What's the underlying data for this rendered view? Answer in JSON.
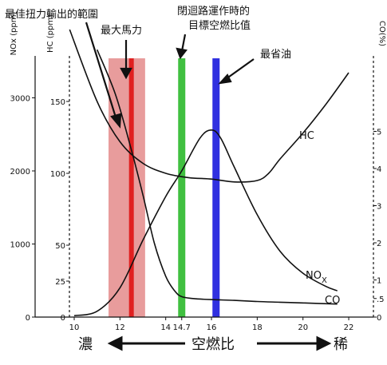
{
  "chart_data": {
    "type": "line",
    "title": "",
    "xlabel": "空燃比",
    "xlabel_left": "濃",
    "xlabel_right": "稀",
    "x_ticks": [
      "10",
      "12",
      "14",
      "14.7",
      "16",
      "18",
      "20",
      "22"
    ],
    "nox_axis": {
      "label": "NOx (ppm)",
      "ticks": [
        "0",
        "1000",
        "2000",
        "3000"
      ]
    },
    "hc_axis": {
      "label": "HC (ppm)",
      "ticks": [
        "0",
        "25",
        "50",
        "100",
        "150"
      ]
    },
    "co_axis": {
      "label": "CO(%)",
      "ticks": [
        "0",
        ".5",
        "1",
        "2",
        "3",
        "4",
        "5"
      ]
    },
    "bands": [
      {
        "label": "最大馬力",
        "x_from": 11.5,
        "x_to": 13.1,
        "line_x": 12.5,
        "band_color": "#e07b7b",
        "line_color": "#e02020"
      },
      {
        "label": "閉迴路運作時的\n目標空燃比值",
        "x": 14.7,
        "color": "#40c040"
      },
      {
        "label": "最省油",
        "x": 16.2,
        "color": "#3030e0"
      }
    ],
    "annotations": {
      "torque": "最佳扭力輸出的範圍"
    },
    "series": [
      {
        "name": "HC",
        "axis": "hc",
        "x": [
          9.8,
          11.0,
          12.0,
          13.0,
          14.0,
          15.0,
          16.0,
          17.0,
          18.0,
          18.5,
          19.0,
          20.0,
          21.0,
          22.0
        ],
        "values": [
          200,
          150,
          122,
          107,
          100,
          97,
          96,
          94,
          95,
          100,
          110,
          128,
          148,
          170
        ]
      },
      {
        "name": "NOx",
        "axis": "nox",
        "x": [
          10.0,
          11.0,
          12.0,
          13.0,
          14.0,
          14.7,
          15.5,
          16.0,
          16.4,
          17.0,
          18.0,
          19.0,
          20.0,
          21.0,
          21.5
        ],
        "values": [
          20,
          80,
          400,
          1050,
          1650,
          2000,
          2450,
          2560,
          2450,
          2050,
          1400,
          900,
          600,
          420,
          360
        ]
      },
      {
        "name": "CO",
        "axis": "co",
        "x": [
          11.0,
          11.8,
          12.5,
          13.0,
          13.5,
          14.0,
          14.4,
          14.7,
          15.2,
          16.0,
          17.0,
          18.0,
          19.0,
          20.0,
          21.5
        ],
        "values": [
          7.2,
          6.0,
          4.5,
          3.3,
          2.0,
          1.1,
          0.7,
          0.55,
          0.5,
          0.47,
          0.45,
          0.42,
          0.4,
          0.38,
          0.35
        ]
      }
    ],
    "series_labels": {
      "hc": "HC",
      "nox_main": "NO",
      "nox_sub": "X",
      "co": "CO"
    },
    "grid": false
  }
}
